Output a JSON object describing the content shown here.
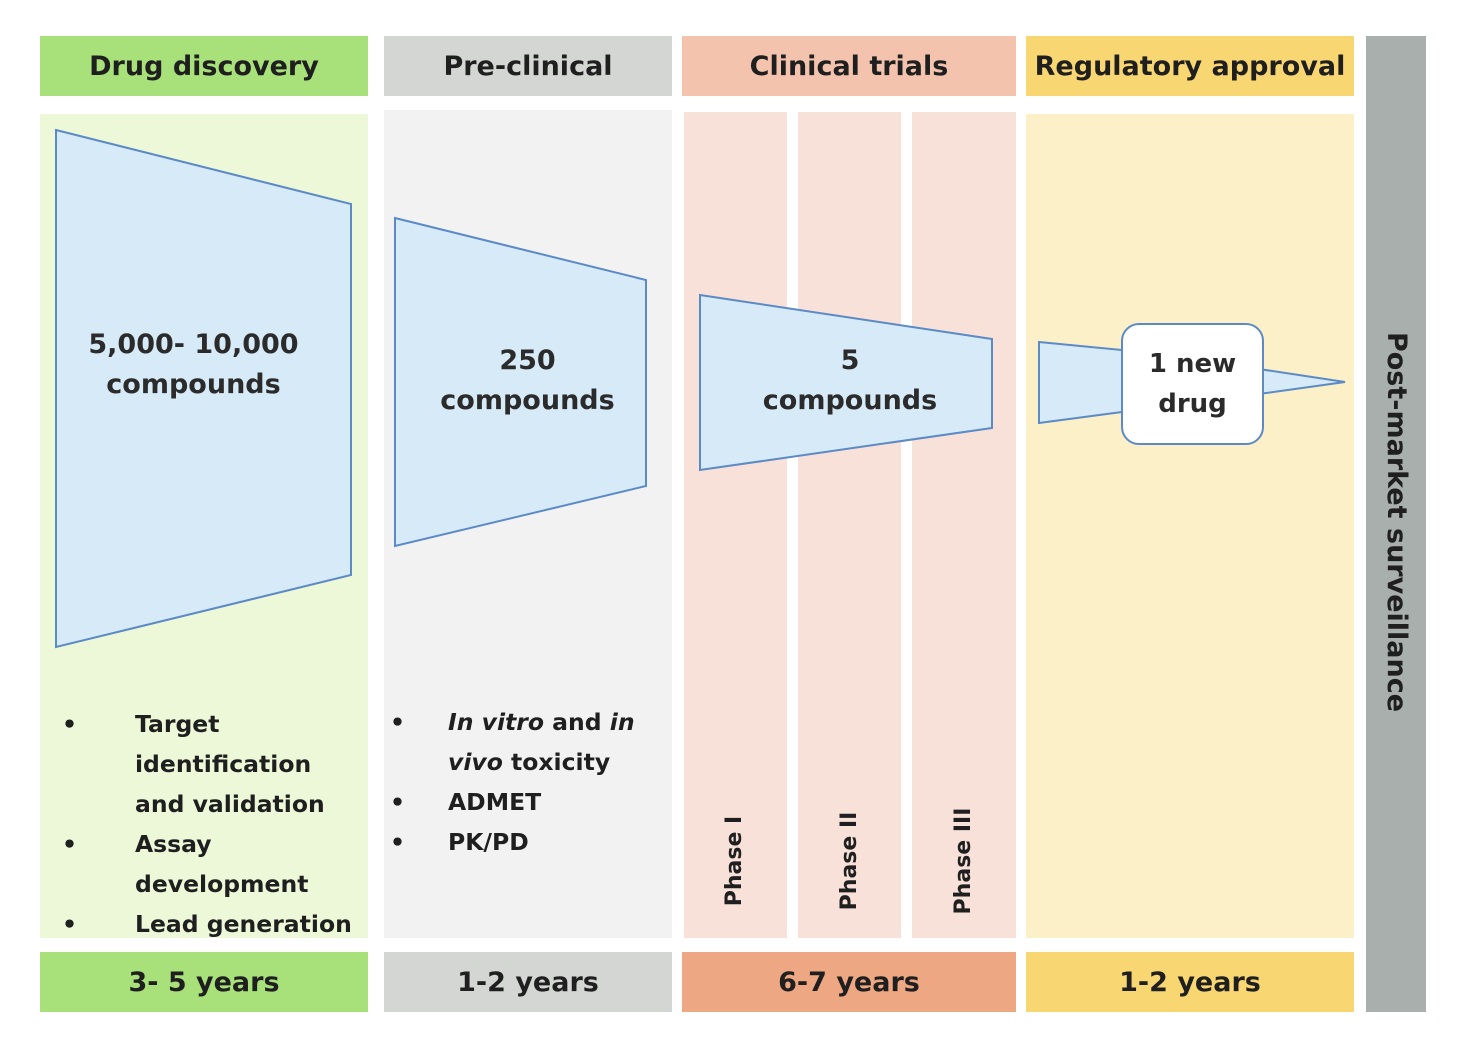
{
  "stages": {
    "discovery": {
      "title": "Drug discovery",
      "duration": "3- 5 years",
      "color_header": "#a8e07a",
      "color_body": "#edf8d8"
    },
    "preclinical": {
      "title": "Pre-clinical",
      "duration": "1-2 years",
      "color_header": "#d4d6d4",
      "color_body": "#f2f2f2"
    },
    "clinical": {
      "title": "Clinical trials",
      "duration": "6-7 years",
      "color_header": "#f4c3ad",
      "color_duration": "#eea783",
      "color_body": "#f8e1d8"
    },
    "regulatory": {
      "title": "Regulatory approval",
      "duration": "1-2 years",
      "color_header": "#f8d772",
      "color_body": "#fbf0c8"
    },
    "postmarket": {
      "title": "Post-market surveillance",
      "color": "#a9afac"
    }
  },
  "funnels": {
    "discovery": {
      "line1": "5,000- 10,000",
      "line2": "compounds"
    },
    "preclinical": {
      "line1": "250",
      "line2": "compounds"
    },
    "clinical": {
      "line1": "5",
      "line2": "compounds"
    },
    "regulatory": {
      "line1": "1 new",
      "line2": "drug"
    },
    "fill": "#d6eaf8",
    "stroke": "#5b8ac7"
  },
  "discovery_activities": [
    "Target identification and validation",
    "Assay development",
    "Lead generation"
  ],
  "preclinical_activities": {
    "item1": {
      "italic1": "In vitro",
      "text1": " and ",
      "italic2": "in vivo",
      "text2": " toxicity"
    },
    "item2": "ADMET",
    "item3": "PK/PD"
  },
  "phases": [
    "Phase I",
    "Phase II",
    "Phase III"
  ]
}
